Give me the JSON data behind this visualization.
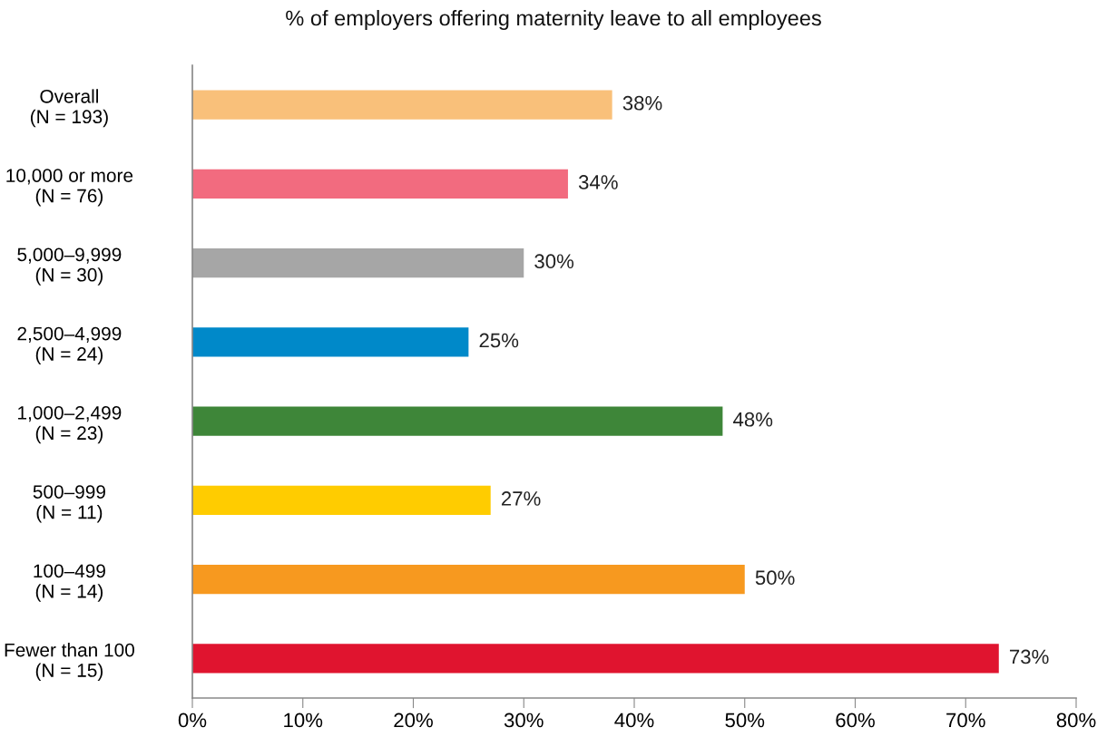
{
  "chart_data": {
    "type": "bar",
    "orientation": "horizontal",
    "title": "% of employers offering maternity leave to all employees",
    "categories": [
      "Overall\n(N = 193)",
      "10,000 or more\n(N = 76)",
      "5,000–9,999\n(N = 30)",
      "2,500–4,999\n(N = 24)",
      "1,000–2,499\n(N = 23)",
      "500–999\n(N = 11)",
      "100–499\n(N = 14)",
      "Fewer than 100\n(N = 15)"
    ],
    "values": [
      38,
      34,
      30,
      25,
      48,
      27,
      50,
      73
    ],
    "value_labels": [
      "38%",
      "34%",
      "30%",
      "25%",
      "48%",
      "27%",
      "50%",
      "73%"
    ],
    "colors": [
      "#f9c07a",
      "#f26b7f",
      "#a6a6a6",
      "#0089c9",
      "#3e8639",
      "#ffcc00",
      "#f7991f",
      "#e0142f"
    ],
    "xlim": [
      0,
      80
    ],
    "xticks": [
      {
        "value": 0,
        "label": "0%"
      },
      {
        "value": 10,
        "label": "10%"
      },
      {
        "value": 20,
        "label": "20%"
      },
      {
        "value": 30,
        "label": "30%"
      },
      {
        "value": 40,
        "label": "40%"
      },
      {
        "value": 50,
        "label": "50%"
      },
      {
        "value": 60,
        "label": "60%"
      },
      {
        "value": 70,
        "label": "70%"
      },
      {
        "value": 80,
        "label": "80%"
      }
    ],
    "grid": false,
    "legend": false
  }
}
